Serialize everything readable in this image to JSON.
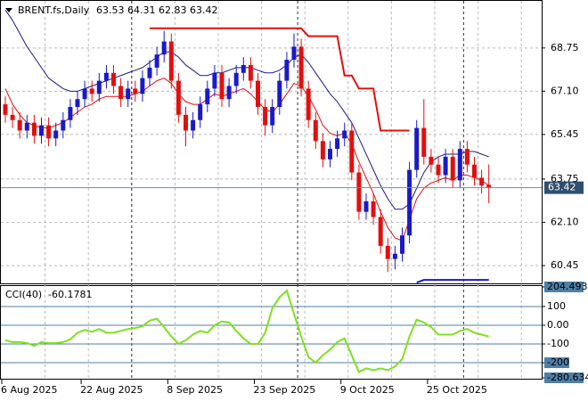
{
  "chart_data": [
    {
      "type": "candlestick",
      "symbol": "BRENT.fs,Daily",
      "categories": [
        "6 Aug 2025",
        null,
        null,
        null,
        null,
        null,
        null,
        null,
        null,
        null,
        null,
        "22 Aug 2025",
        null,
        null,
        null,
        null,
        null,
        null,
        null,
        null,
        null,
        null,
        null,
        "8 Sep 2025",
        null,
        null,
        null,
        null,
        null,
        null,
        null,
        null,
        null,
        null,
        null,
        "23 Sep 2025",
        null,
        null,
        null,
        null,
        null,
        null,
        null,
        null,
        null,
        null,
        null,
        "9 Oct 2025",
        null,
        null,
        null,
        null,
        null,
        null,
        null,
        null,
        null,
        null,
        null,
        "25 Oct 2025",
        null,
        null,
        null,
        null,
        null,
        null,
        null,
        null
      ],
      "open": [
        66.6,
        66.2,
        66.0,
        65.6,
        65.9,
        65.4,
        65.8,
        65.3,
        65.6,
        66.0,
        66.5,
        66.8,
        67.2,
        67.0,
        67.5,
        67.8,
        67.3,
        66.8,
        67.2,
        67.0,
        67.6,
        68.0,
        68.5,
        69.0,
        67.5,
        66.2,
        65.6,
        66.0,
        66.6,
        67.2,
        67.8,
        66.8,
        67.3,
        67.8,
        68.1,
        67.5,
        66.5,
        65.8,
        66.5,
        67.5,
        68.3,
        68.8,
        67.2,
        66.0,
        65.2,
        64.5,
        64.9,
        65.3,
        65.6,
        64.0,
        62.5,
        62.9,
        62.3,
        61.2,
        60.7,
        60.9,
        61.6,
        64.1,
        65.7,
        64.6,
        64.3,
        63.9,
        64.6,
        63.7,
        64.9,
        64.3,
        63.8,
        63.53
      ],
      "high": [
        66.9,
        66.5,
        66.3,
        66.2,
        66.2,
        66.1,
        66.1,
        65.9,
        66.3,
        66.8,
        67.1,
        67.5,
        67.5,
        67.8,
        68.1,
        68.1,
        67.6,
        67.5,
        67.5,
        67.9,
        68.3,
        68.8,
        69.4,
        69.3,
        67.8,
        66.5,
        66.3,
        66.9,
        67.5,
        68.1,
        68.1,
        67.6,
        68.1,
        68.4,
        68.4,
        67.8,
        66.8,
        66.8,
        67.8,
        68.6,
        69.3,
        69.1,
        67.5,
        66.3,
        65.5,
        65.2,
        65.6,
        65.9,
        65.9,
        64.3,
        63.2,
        63.2,
        62.6,
        61.5,
        61.2,
        61.9,
        64.4,
        66.0,
        66.8,
        64.9,
        64.6,
        64.9,
        64.9,
        65.2,
        65.2,
        64.6,
        64.1,
        64.31
      ],
      "low": [
        65.9,
        65.7,
        65.3,
        65.3,
        65.1,
        65.1,
        65.0,
        65.0,
        65.3,
        65.7,
        66.2,
        66.5,
        66.7,
        66.7,
        67.2,
        67.0,
        66.5,
        66.5,
        66.7,
        66.7,
        67.3,
        67.7,
        68.2,
        67.2,
        65.9,
        65.0,
        65.3,
        65.7,
        66.3,
        66.9,
        66.5,
        66.5,
        67.0,
        67.5,
        67.2,
        66.2,
        65.4,
        65.5,
        66.2,
        67.2,
        68.0,
        66.9,
        65.7,
        64.9,
        64.2,
        64.2,
        64.6,
        65.0,
        63.7,
        62.2,
        62.2,
        62.0,
        60.9,
        60.2,
        60.3,
        60.6,
        61.3,
        63.8,
        64.3,
        64.0,
        63.6,
        63.6,
        63.4,
        63.4,
        64.0,
        63.5,
        63.2,
        62.83
      ],
      "close": [
        66.2,
        66.0,
        65.6,
        65.9,
        65.4,
        65.8,
        65.3,
        65.6,
        66.0,
        66.5,
        66.8,
        67.2,
        67.0,
        67.5,
        67.8,
        67.3,
        66.8,
        67.2,
        67.0,
        67.6,
        68.0,
        68.5,
        69.0,
        67.5,
        66.2,
        65.6,
        66.0,
        66.6,
        67.2,
        67.8,
        66.8,
        67.3,
        67.8,
        68.1,
        67.5,
        66.5,
        65.8,
        66.5,
        67.5,
        68.3,
        68.8,
        67.2,
        66.0,
        65.2,
        64.5,
        64.9,
        65.3,
        65.6,
        64.0,
        62.5,
        62.9,
        62.3,
        61.2,
        60.7,
        60.9,
        61.6,
        64.1,
        65.7,
        64.6,
        64.3,
        63.9,
        64.6,
        63.7,
        64.9,
        64.3,
        63.8,
        63.5,
        63.42
      ],
      "up_color": "#1a1ac8",
      "down_color": "#e01010",
      "overlays": [
        {
          "color": "#1a1a8c",
          "values": [
            70.2,
            69.8,
            69.3,
            68.8,
            68.4,
            68.0,
            67.6,
            67.4,
            67.2,
            67.1,
            67.1,
            67.2,
            67.3,
            67.4,
            67.5,
            67.6,
            67.7,
            67.8,
            67.9,
            68.0,
            68.2,
            68.4,
            68.6,
            68.6,
            68.4,
            68.1,
            67.9,
            67.7,
            67.7,
            67.8,
            67.8,
            67.9,
            68.0,
            68.0,
            68.0,
            67.9,
            67.8,
            67.8,
            67.9,
            68.1,
            68.4,
            68.5,
            68.2,
            67.8,
            67.4,
            67.0,
            66.7,
            66.3,
            65.9,
            65.3,
            64.7,
            64.1,
            63.5,
            63.0,
            62.6,
            62.6,
            62.8,
            63.4,
            64.0,
            64.4,
            64.6,
            64.7,
            64.7,
            64.7,
            64.8,
            64.8,
            64.7,
            64.6
          ]
        },
        {
          "color": "#e01010",
          "values": [
            67.2,
            66.6,
            66.2,
            65.9,
            65.8,
            65.7,
            65.7,
            65.8,
            65.9,
            66.1,
            66.3,
            66.5,
            66.6,
            66.8,
            66.9,
            66.9,
            66.9,
            66.9,
            67.0,
            67.1,
            67.3,
            67.5,
            67.6,
            67.4,
            67.0,
            66.7,
            66.6,
            66.6,
            66.8,
            67.0,
            66.9,
            67.0,
            67.1,
            67.2,
            67.0,
            66.7,
            66.4,
            66.3,
            66.6,
            67.0,
            67.4,
            67.3,
            66.9,
            66.4,
            65.8,
            65.5,
            65.4,
            65.5,
            65.1,
            64.4,
            63.8,
            63.2,
            62.5,
            61.9,
            61.5,
            61.4,
            62.2,
            63.0,
            63.4,
            63.6,
            63.7,
            63.8,
            63.7,
            63.9,
            63.9,
            63.8,
            63.7,
            63.5
          ]
        },
        {
          "color": "#e01010",
          "width": 2,
          "values": [
            null,
            null,
            null,
            null,
            null,
            null,
            null,
            null,
            null,
            null,
            null,
            null,
            null,
            null,
            null,
            null,
            null,
            null,
            null,
            null,
            69.5,
            69.5,
            69.5,
            69.5,
            69.5,
            69.5,
            69.5,
            69.5,
            69.5,
            69.5,
            69.5,
            69.5,
            69.5,
            69.5,
            69.5,
            69.5,
            69.5,
            69.5,
            69.5,
            69.5,
            69.5,
            69.5,
            69.2,
            69.2,
            69.2,
            69.2,
            69.2,
            67.7,
            67.7,
            67.2,
            67.2,
            67.2,
            65.6,
            65.6,
            65.6,
            65.6,
            65.6,
            null,
            null,
            null,
            null,
            null,
            null,
            null,
            null,
            null,
            null,
            null
          ]
        },
        {
          "color": "#1a1ac8",
          "width": 2,
          "values": [
            null,
            null,
            null,
            null,
            null,
            null,
            null,
            null,
            null,
            null,
            null,
            null,
            null,
            null,
            null,
            null,
            null,
            null,
            null,
            null,
            null,
            null,
            null,
            null,
            null,
            null,
            null,
            null,
            null,
            null,
            null,
            null,
            null,
            null,
            null,
            null,
            null,
            null,
            null,
            null,
            null,
            null,
            null,
            null,
            null,
            null,
            null,
            null,
            null,
            null,
            null,
            null,
            null,
            null,
            null,
            null,
            null,
            59.8,
            59.9,
            59.9,
            59.9,
            59.9,
            59.9,
            59.9,
            59.9,
            59.9,
            59.9,
            59.9
          ]
        }
      ],
      "ylim": [
        59.77,
        70.58
      ],
      "yticks": [
        68.75,
        {
          "value": 67.1,
          "label": "67.10"
        },
        65.45,
        63.75,
        {
          "value": 62.1,
          "label": "62.10"
        },
        60.45
      ],
      "grid": true
    },
    {
      "type": "line",
      "title": "CCI(40)",
      "values": [
        -80,
        -90,
        -90,
        -95,
        -110,
        -90,
        -95,
        -95,
        -90,
        -75,
        -40,
        -25,
        -35,
        -20,
        -40,
        -40,
        -30,
        -20,
        -15,
        -5,
        25,
        35,
        -10,
        -60,
        -100,
        -80,
        -50,
        -30,
        -40,
        0,
        20,
        15,
        -30,
        -70,
        -100,
        -100,
        -40,
        90,
        150,
        185,
        60,
        -60,
        -170,
        -200,
        -160,
        -130,
        -90,
        -70,
        -160,
        -250,
        -230,
        -240,
        -230,
        -240,
        -220,
        -180,
        -60,
        30,
        15,
        -10,
        -50,
        -50,
        -50,
        -30,
        -20,
        -40,
        -50,
        -60.1781
      ],
      "color": "#7fe020",
      "ylim": [
        -280.634,
        204.493
      ],
      "yticks": [
        204.493,
        100,
        {
          "value": 0,
          "label": "0.00"
        },
        -100,
        -200,
        -280.634
      ],
      "levels_color": "#4f7fa6"
    }
  ]
}
